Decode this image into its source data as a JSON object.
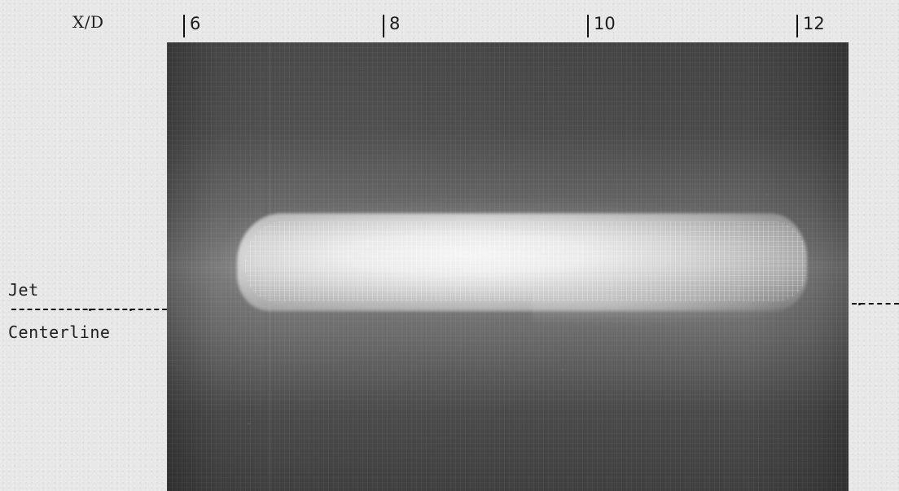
{
  "axis": {
    "label": "X/D",
    "ticks": [
      "6",
      "8",
      "10",
      "12"
    ]
  },
  "labels": {
    "jet": "Jet",
    "centerline": "Centerline"
  }
}
